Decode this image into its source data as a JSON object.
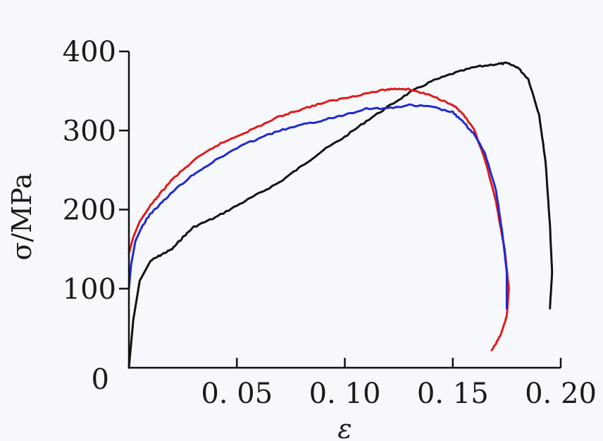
{
  "chart_data": {
    "type": "line",
    "title": "",
    "xlabel": "ε",
    "ylabel": "σ/MPa",
    "xlim": [
      0,
      0.2
    ],
    "ylim": [
      0,
      400
    ],
    "grid": false,
    "x_ticks": [
      0.05,
      0.1,
      0.15,
      0.2
    ],
    "x_tick_labels": [
      "0. 05",
      "0. 10",
      "0. 15",
      "0. 20"
    ],
    "y_ticks": [
      0,
      100,
      200,
      300,
      400
    ],
    "y_tick_labels": [
      "0",
      "100",
      "200",
      "300",
      "400"
    ],
    "series": [
      {
        "name": "black",
        "color": "#111111",
        "points": [
          [
            0.0,
            0
          ],
          [
            0.002,
            60
          ],
          [
            0.005,
            110
          ],
          [
            0.01,
            135
          ],
          [
            0.015,
            143
          ],
          [
            0.02,
            150
          ],
          [
            0.025,
            165
          ],
          [
            0.03,
            178
          ],
          [
            0.04,
            190
          ],
          [
            0.05,
            205
          ],
          [
            0.06,
            220
          ],
          [
            0.07,
            235
          ],
          [
            0.08,
            255
          ],
          [
            0.09,
            275
          ],
          [
            0.1,
            292
          ],
          [
            0.11,
            312
          ],
          [
            0.12,
            330
          ],
          [
            0.13,
            348
          ],
          [
            0.14,
            362
          ],
          [
            0.15,
            372
          ],
          [
            0.16,
            380
          ],
          [
            0.17,
            384
          ],
          [
            0.175,
            385
          ],
          [
            0.18,
            380
          ],
          [
            0.185,
            365
          ],
          [
            0.19,
            320
          ],
          [
            0.193,
            260
          ],
          [
            0.195,
            180
          ],
          [
            0.196,
            120
          ],
          [
            0.195,
            75
          ]
        ]
      },
      {
        "name": "red",
        "color": "#e01a1a",
        "points": [
          [
            0.0,
            145
          ],
          [
            0.002,
            165
          ],
          [
            0.005,
            185
          ],
          [
            0.01,
            205
          ],
          [
            0.015,
            222
          ],
          [
            0.02,
            238
          ],
          [
            0.03,
            262
          ],
          [
            0.04,
            280
          ],
          [
            0.05,
            293
          ],
          [
            0.06,
            305
          ],
          [
            0.07,
            318
          ],
          [
            0.08,
            327
          ],
          [
            0.09,
            335
          ],
          [
            0.1,
            341
          ],
          [
            0.11,
            347
          ],
          [
            0.12,
            352
          ],
          [
            0.125,
            353
          ],
          [
            0.13,
            352
          ],
          [
            0.14,
            344
          ],
          [
            0.15,
            333
          ],
          [
            0.155,
            320
          ],
          [
            0.16,
            300
          ],
          [
            0.165,
            262
          ],
          [
            0.17,
            210
          ],
          [
            0.174,
            150
          ],
          [
            0.176,
            100
          ],
          [
            0.175,
            65
          ],
          [
            0.172,
            40
          ],
          [
            0.168,
            22
          ]
        ]
      },
      {
        "name": "blue",
        "color": "#1f2ad1",
        "points": [
          [
            0.0,
            100
          ],
          [
            0.001,
            130
          ],
          [
            0.003,
            160
          ],
          [
            0.006,
            178
          ],
          [
            0.01,
            195
          ],
          [
            0.015,
            208
          ],
          [
            0.02,
            222
          ],
          [
            0.03,
            245
          ],
          [
            0.04,
            262
          ],
          [
            0.05,
            278
          ],
          [
            0.06,
            290
          ],
          [
            0.07,
            300
          ],
          [
            0.08,
            307
          ],
          [
            0.09,
            313
          ],
          [
            0.1,
            320
          ],
          [
            0.11,
            328
          ],
          [
            0.12,
            328
          ],
          [
            0.13,
            332
          ],
          [
            0.14,
            330
          ],
          [
            0.15,
            323
          ],
          [
            0.155,
            310
          ],
          [
            0.16,
            295
          ],
          [
            0.165,
            270
          ],
          [
            0.17,
            225
          ],
          [
            0.173,
            170
          ],
          [
            0.175,
            120
          ],
          [
            0.175,
            75
          ]
        ]
      }
    ]
  }
}
